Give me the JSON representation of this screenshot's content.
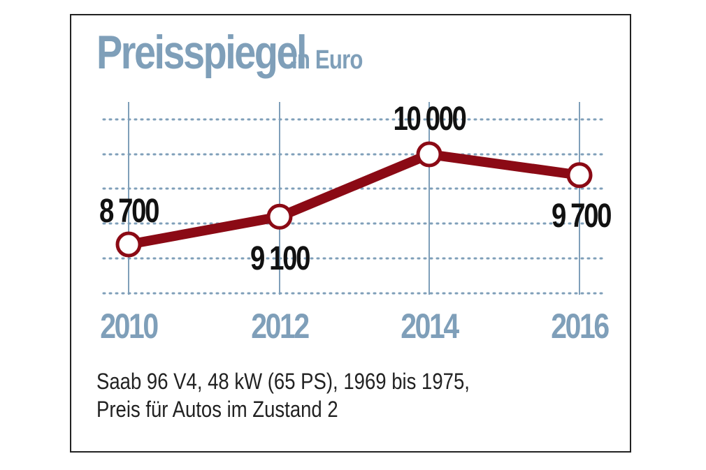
{
  "chart_data": {
    "type": "line",
    "title": "Preisspiegel",
    "subtitle": "in Euro",
    "x": [
      "2010",
      "2012",
      "2014",
      "2016"
    ],
    "series": [
      {
        "values": [
          8700,
          9100,
          10000,
          9700
        ]
      }
    ],
    "data_labels": [
      "8 700",
      "9 100",
      "10 000",
      "9 700"
    ],
    "ylim": [
      8000,
      10400
    ],
    "grid": true,
    "colors": {
      "line": "#8b0a15",
      "marker_fill": "#ffffff",
      "accent": "#7f9fb9",
      "grid": "#7f9fb9",
      "text": "#111111"
    }
  },
  "caption": {
    "line1": "Saab 96 V4, 48 kW (65 PS), 1969 bis 1975,",
    "line2": "Preis für Autos im Zustand 2"
  }
}
